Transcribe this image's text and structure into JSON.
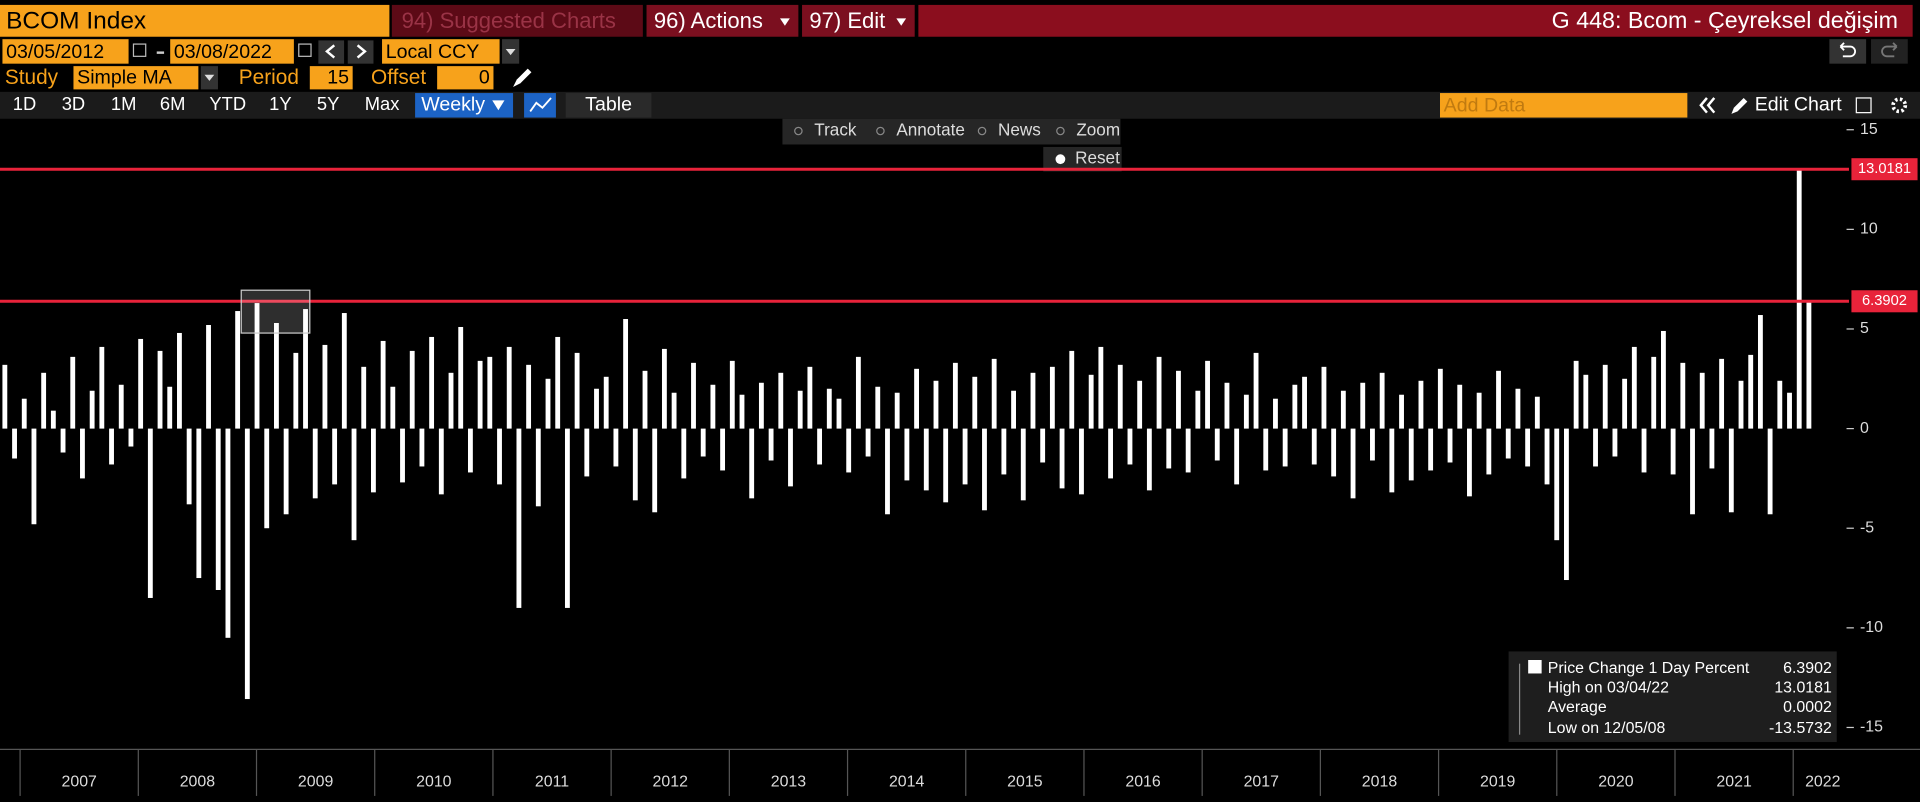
{
  "toolbar": {
    "security": "BCOM Index",
    "menu": [
      "94) Suggested Charts",
      "96) Actions",
      "97) Edit"
    ],
    "title": "G 448: Bcom - Çeyreksel değişim"
  },
  "dates": {
    "start": "03/05/2012",
    "end": "03/08/2022",
    "currency": "Local CCY"
  },
  "study": {
    "label": "Study",
    "type": "Simple MA",
    "period_label": "Period",
    "period": 15,
    "offset_label": "Offset",
    "offset": 0
  },
  "ranges": [
    "1D",
    "3D",
    "1M",
    "6M",
    "YTD",
    "1Y",
    "5Y",
    "Max"
  ],
  "frequency": "Weekly",
  "table": "Table",
  "add_data": "Add Data",
  "edit_chart": "Edit Chart",
  "chart_tools": [
    "Track",
    "Annotate",
    "News",
    "Zoom"
  ],
  "reset": "Reset",
  "chart_data": {
    "type": "bar",
    "series": [
      {
        "name": "Price Change 1 Day Percent",
        "color": "#ffffff",
        "values": [
          3.2,
          -1.5,
          1.5,
          -4.8,
          2.8,
          0.9,
          -1.2,
          3.6,
          -2.5,
          1.9,
          4.1,
          -1.8,
          2.2,
          -0.9,
          4.5,
          -8.5,
          3.9,
          2.1,
          4.8,
          -3.8,
          -7.5,
          5.2,
          -8.1,
          -10.5,
          5.9,
          -13.5732,
          6.3,
          -5.0,
          5.3,
          -4.3,
          3.8,
          6.0,
          -3.5,
          4.2,
          -2.8,
          5.8,
          -5.6,
          3.1,
          -3.2,
          4.4,
          2.1,
          -2.7,
          3.9,
          -1.9,
          4.6,
          -3.3,
          2.8,
          5.1,
          -2.2,
          3.4,
          3.6,
          -2.8,
          4.1,
          -9.0,
          3.2,
          -3.9,
          2.5,
          4.6,
          -9.0,
          3.8,
          -2.4,
          2.0,
          2.6,
          -1.9,
          5.5,
          -3.6,
          2.9,
          -4.2,
          4.0,
          1.8,
          -2.5,
          3.3,
          -1.4,
          2.2,
          -2.1,
          3.4,
          1.7,
          -3.5,
          2.3,
          -1.6,
          2.8,
          -2.9,
          1.9,
          3.1,
          -1.8,
          2.0,
          1.5,
          -2.2,
          3.6,
          -1.4,
          2.1,
          -4.3,
          1.8,
          -2.6,
          3.0,
          -3.1,
          2.4,
          -3.7,
          3.3,
          -2.8,
          2.6,
          -4.1,
          3.5,
          -2.3,
          1.9,
          -3.6,
          2.8,
          -1.7,
          3.1,
          -3.0,
          3.9,
          -3.3,
          2.7,
          4.1,
          -2.5,
          3.2,
          -1.8,
          2.4,
          -3.1,
          3.6,
          -2.0,
          2.9,
          -2.2,
          1.9,
          3.4,
          -1.6,
          2.3,
          -2.8,
          1.7,
          3.8,
          -2.1,
          1.5,
          -1.9,
          2.2,
          2.6,
          -1.8,
          3.1,
          -2.4,
          1.9,
          -3.5,
          2.3,
          -1.6,
          2.8,
          -3.2,
          1.7,
          -2.6,
          2.4,
          -2.1,
          3.0,
          -1.7,
          2.2,
          -3.4,
          1.8,
          -2.3,
          2.9,
          -1.5,
          2.0,
          -1.9,
          1.6,
          -2.8,
          -5.6,
          -7.6,
          3.4,
          2.7,
          -1.9,
          3.2,
          -1.4,
          2.5,
          4.1,
          -2.2,
          3.6,
          4.9,
          -2.3,
          3.3,
          -4.3,
          2.8,
          -2.0,
          3.5,
          -4.2,
          2.4,
          3.7,
          5.7,
          -4.3,
          2.4,
          1.8,
          13.0181,
          6.3902,
          null,
          null,
          null
        ]
      }
    ],
    "ylim": [
      -16.1,
      15.55
    ],
    "yticks": [
      15,
      10,
      5,
      0,
      -5,
      -10,
      -15
    ],
    "xlim": [
      2006.83,
      2022.42
    ],
    "xticks": [
      {
        "value": 2007.5,
        "label": "2007"
      },
      {
        "value": 2008.5,
        "label": "2008"
      },
      {
        "value": 2009.5,
        "label": "2009"
      },
      {
        "value": 2010.5,
        "label": "2010"
      },
      {
        "value": 2011.5,
        "label": "2011"
      },
      {
        "value": 2012.5,
        "label": "2012"
      },
      {
        "value": 2013.5,
        "label": "2013"
      },
      {
        "value": 2014.5,
        "label": "2014"
      },
      {
        "value": 2015.5,
        "label": "2015"
      },
      {
        "value": 2016.5,
        "label": "2016"
      },
      {
        "value": 2017.5,
        "label": "2017"
      },
      {
        "value": 2018.5,
        "label": "2018"
      },
      {
        "value": 2019.5,
        "label": "2019"
      },
      {
        "value": 2020.5,
        "label": "2020"
      },
      {
        "value": 2021.5,
        "label": "2021"
      },
      {
        "value": 2022.25,
        "label": "2022"
      }
    ],
    "legend": {
      "last": 6.3902,
      "high_label": "High on 03/04/22",
      "high": 13.0181,
      "average_label": "Average",
      "average": 0.0002,
      "low_label": "Low on 12/05/08",
      "low": -13.5732
    }
  }
}
